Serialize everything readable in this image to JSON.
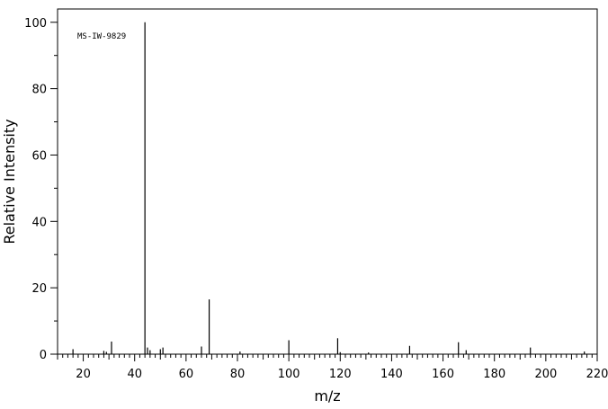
{
  "chart_data": {
    "type": "bar",
    "subtype": "mass-spectrum-stick",
    "annotation": "MS-IW-9829",
    "xlabel": "m/z",
    "ylabel": "Relative Intensity",
    "xlim": [
      10,
      220
    ],
    "ylim": [
      0,
      104
    ],
    "x_ticks": [
      20,
      40,
      60,
      80,
      100,
      120,
      140,
      160,
      180,
      200,
      220
    ],
    "y_ticks": [
      0,
      20,
      40,
      60,
      80,
      100
    ],
    "grid": false,
    "peaks": [
      {
        "mz": 16,
        "intensity": 1.5
      },
      {
        "mz": 28,
        "intensity": 1.0
      },
      {
        "mz": 29,
        "intensity": 0.7
      },
      {
        "mz": 31,
        "intensity": 3.8
      },
      {
        "mz": 44,
        "intensity": 100
      },
      {
        "mz": 45,
        "intensity": 2.0
      },
      {
        "mz": 46,
        "intensity": 1.2
      },
      {
        "mz": 50,
        "intensity": 1.5
      },
      {
        "mz": 51,
        "intensity": 2.0
      },
      {
        "mz": 66,
        "intensity": 2.3
      },
      {
        "mz": 69,
        "intensity": 16.5
      },
      {
        "mz": 81,
        "intensity": 0.8
      },
      {
        "mz": 100,
        "intensity": 4.2
      },
      {
        "mz": 119,
        "intensity": 4.8
      },
      {
        "mz": 120,
        "intensity": 0.6
      },
      {
        "mz": 131,
        "intensity": 0.5
      },
      {
        "mz": 147,
        "intensity": 2.5
      },
      {
        "mz": 166,
        "intensity": 3.6
      },
      {
        "mz": 169,
        "intensity": 1.2
      },
      {
        "mz": 194,
        "intensity": 2.0
      },
      {
        "mz": 215,
        "intensity": 0.8
      }
    ]
  }
}
